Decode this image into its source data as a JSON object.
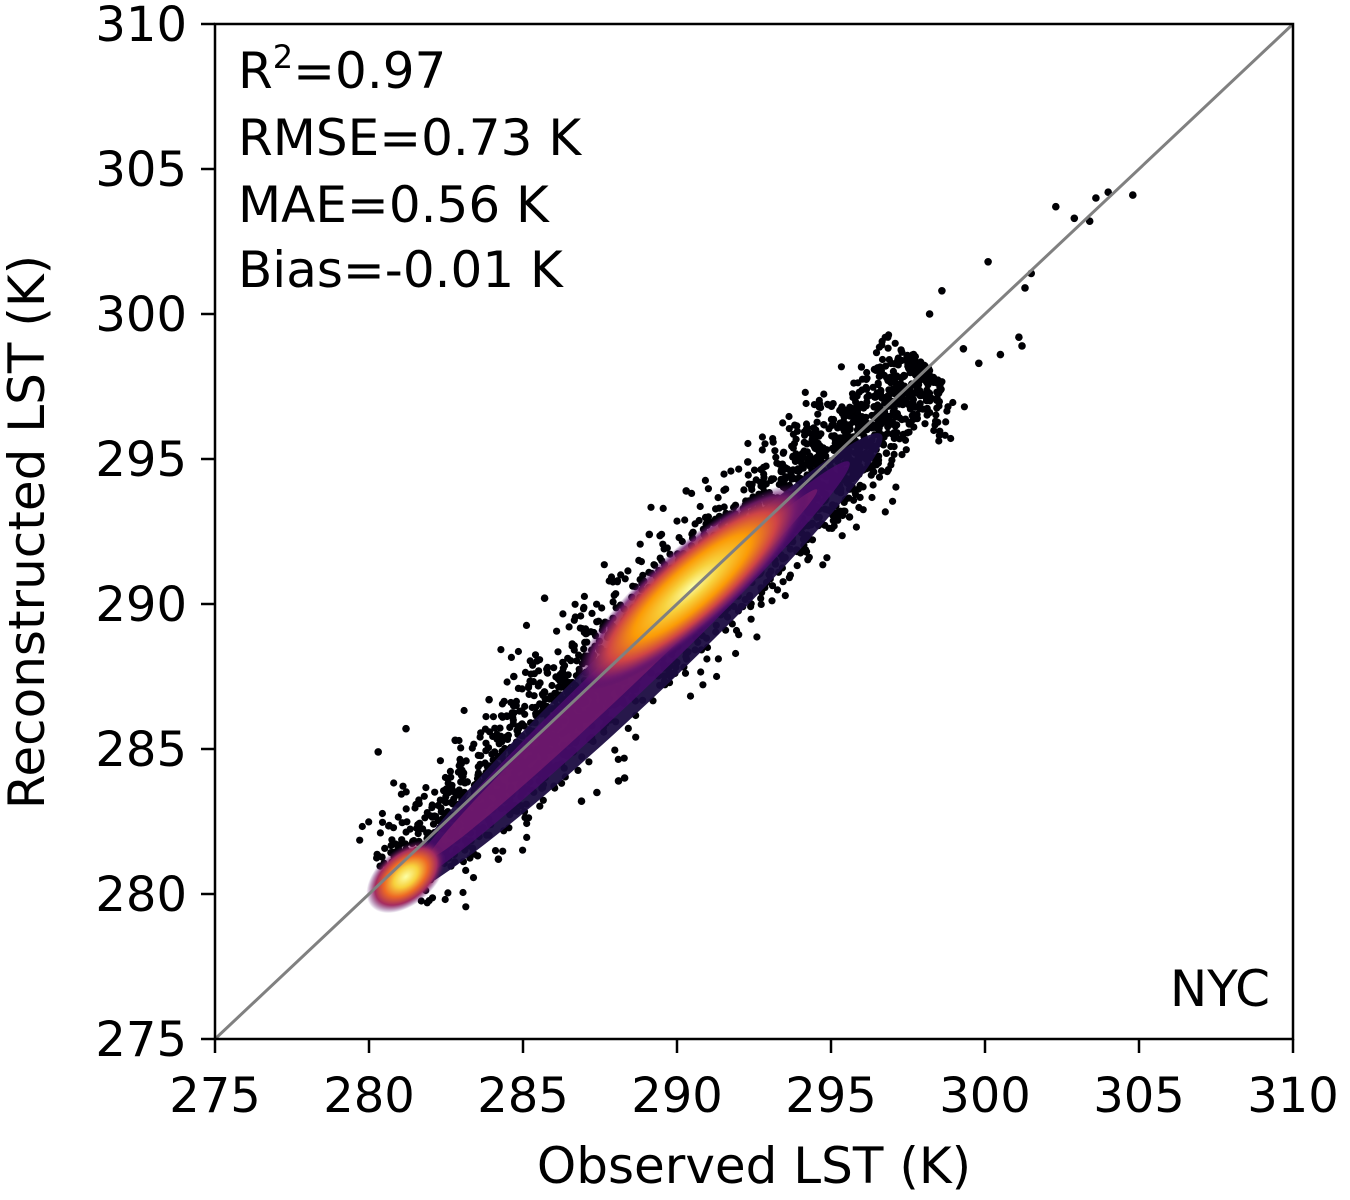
{
  "chart_data": {
    "type": "scatter",
    "style": "density-colored scatter (inferno colormap)",
    "xlabel": "Observed LST (K)",
    "ylabel": "Reconstructed LST (K)",
    "xlim": [
      275,
      310
    ],
    "ylim": [
      275,
      310
    ],
    "xticks": [
      "275",
      "280",
      "285",
      "290",
      "295",
      "300",
      "305",
      "310"
    ],
    "yticks": [
      "275",
      "280",
      "285",
      "290",
      "295",
      "300",
      "305",
      "310"
    ],
    "grid": false,
    "legend": "none",
    "stats": {
      "r2_prefix": "R",
      "r2_sup": "2",
      "r2_value": "=0.97",
      "rmse": "RMSE=0.73 K",
      "mae": "MAE=0.56 K",
      "bias": "Bias=-0.01 K"
    },
    "region_label": "NYC",
    "reference_line": {
      "from": [
        275,
        275
      ],
      "to": [
        310,
        310
      ],
      "color": "#808080"
    },
    "colormap": [
      "#000004",
      "#1b0c41",
      "#4a0c6b",
      "#781c6d",
      "#a52c60",
      "#cf4446",
      "#ed6925",
      "#fb9b06",
      "#f7d13d",
      "#fcffa4"
    ],
    "density_cores": [
      {
        "x": 290.5,
        "y": 290.6,
        "label": "main core"
      },
      {
        "x": 281.2,
        "y": 280.6,
        "label": "secondary core"
      }
    ],
    "outliers": [
      [
        280.3,
        284.9
      ],
      [
        281.2,
        285.7
      ],
      [
        282.8,
        285.3
      ],
      [
        283.1,
        283.5
      ],
      [
        283.4,
        282.6
      ],
      [
        284.2,
        281.2
      ],
      [
        286.9,
        283.2
      ],
      [
        287.4,
        283.5
      ],
      [
        288.3,
        284.0
      ],
      [
        288.1,
        283.9
      ],
      [
        285.7,
        290.2
      ],
      [
        284.7,
        287.5
      ],
      [
        283.9,
        286.7
      ],
      [
        290.3,
        293.9
      ],
      [
        289.1,
        292.4
      ],
      [
        292.3,
        294.9
      ],
      [
        293.5,
        292.7
      ],
      [
        294.2,
        291.8
      ],
      [
        295.6,
        293.0
      ],
      [
        296.4,
        296.8
      ],
      [
        297.1,
        297.8
      ],
      [
        297.8,
        296.4
      ],
      [
        298.2,
        300.0
      ],
      [
        298.6,
        300.8
      ],
      [
        299.3,
        298.8
      ],
      [
        299.8,
        298.3
      ],
      [
        300.1,
        301.8
      ],
      [
        300.5,
        298.6
      ],
      [
        301.1,
        299.2
      ],
      [
        301.2,
        298.9
      ],
      [
        301.3,
        300.9
      ],
      [
        301.5,
        301.4
      ],
      [
        302.3,
        303.7
      ],
      [
        302.9,
        303.3
      ],
      [
        303.4,
        303.2
      ],
      [
        303.6,
        304.0
      ],
      [
        304.0,
        304.2
      ],
      [
        304.8,
        304.1
      ],
      [
        297.5,
        298.2
      ],
      [
        296.8,
        295.2
      ]
    ]
  }
}
